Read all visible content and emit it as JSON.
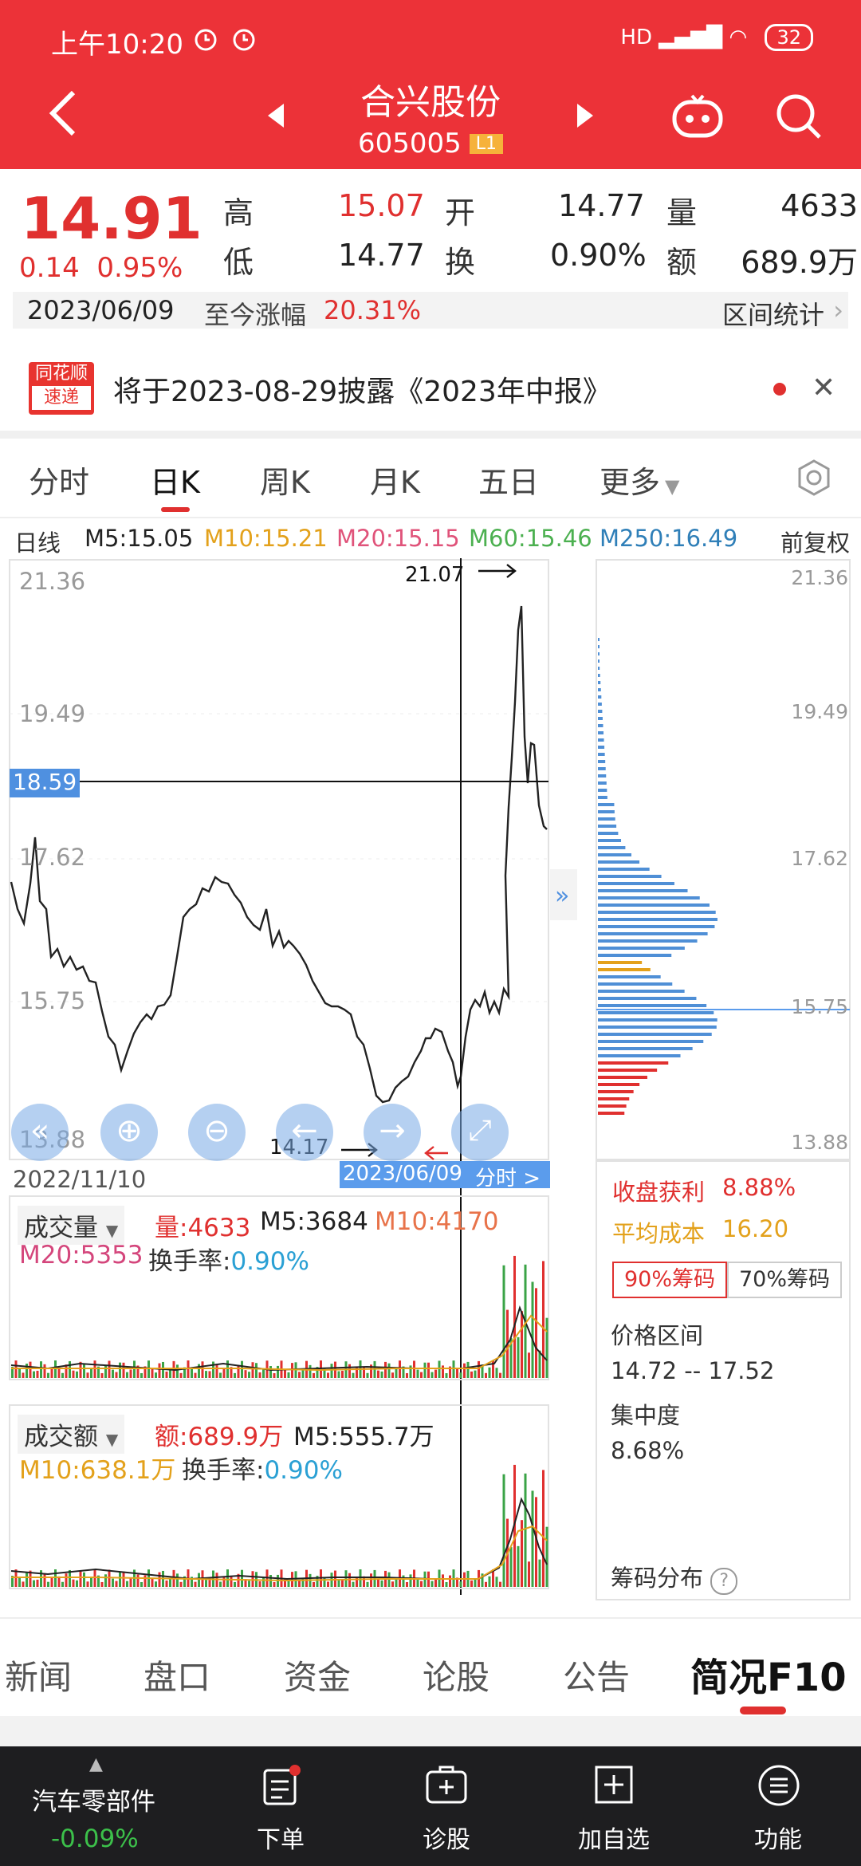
{
  "status": {
    "time": "上午10:20",
    "battery": "32",
    "net": "HD"
  },
  "header": {
    "name": "合兴股份",
    "code": "605005",
    "level": "L1"
  },
  "quote": {
    "price": "14.91",
    "change": "0.14",
    "pct": "0.95%",
    "high_label": "高",
    "high": "15.07",
    "open_label": "开",
    "open": "14.77",
    "vol_label": "量",
    "vol": "4633",
    "low_label": "低",
    "low": "14.77",
    "turn_label": "换",
    "turn": "0.90%",
    "amt_label": "额",
    "amt": "689.9万"
  },
  "range": {
    "date": "2023/06/09",
    "label": "至今涨幅",
    "value": "20.31%",
    "stat": "区间统计"
  },
  "notice": {
    "logo1": "同花顺",
    "logo2": "速递",
    "text": "将于2023-08-29披露《2023年中报》"
  },
  "tabs": [
    "分时",
    "日K",
    "周K",
    "月K",
    "五日",
    "更多"
  ],
  "ma": {
    "type": "日线",
    "m5": "M5:15.05",
    "m10": "M10:15.21",
    "m20": "M20:15.15",
    "m60": "M60:15.46",
    "m250": "M250:16.49",
    "adj": "前复权"
  },
  "chart": {
    "y_ticks": [
      "21.36",
      "19.49",
      "17.62",
      "15.75",
      "13.88"
    ],
    "cross_price": "18.59",
    "max_label": "21.07",
    "min_label": "14.17",
    "start_date": "2022/11/10",
    "cross_date": "2023/06/09",
    "cross_tail": "分时 >",
    "chip_ticks": [
      "21.36",
      "19.49",
      "17.62",
      "15.75",
      "13.88"
    ]
  },
  "chip": {
    "profit_label": "收盘获利",
    "profit": "8.88%",
    "cost_label": "平均成本",
    "cost": "16.20",
    "btn90": "90%筹码",
    "btn70": "70%筹码",
    "range_label": "价格区间",
    "range": "14.72 -- 17.52",
    "conc_label": "集中度",
    "conc": "8.68%",
    "dist": "筹码分布"
  },
  "volume": {
    "label": "成交量",
    "v": "量:4633",
    "m5": "M5:3684",
    "m10": "M10:4170",
    "m20": "M20:5353",
    "turn_label": "换手率:",
    "turn": "0.90%"
  },
  "amount": {
    "label": "成交额",
    "v": "额:689.9万",
    "m5": "M5:555.7万",
    "m10": "M10:638.1万",
    "turn_label": "换手率:",
    "turn": "0.90%"
  },
  "bottom_tabs": [
    "新闻",
    "盘口",
    "资金",
    "论股",
    "公告",
    "简况F10"
  ],
  "footer": {
    "sector": "汽车零部件",
    "sector_chg": "-0.09%",
    "order": "下单",
    "diag": "诊股",
    "add": "加自选",
    "func": "功能"
  }
}
